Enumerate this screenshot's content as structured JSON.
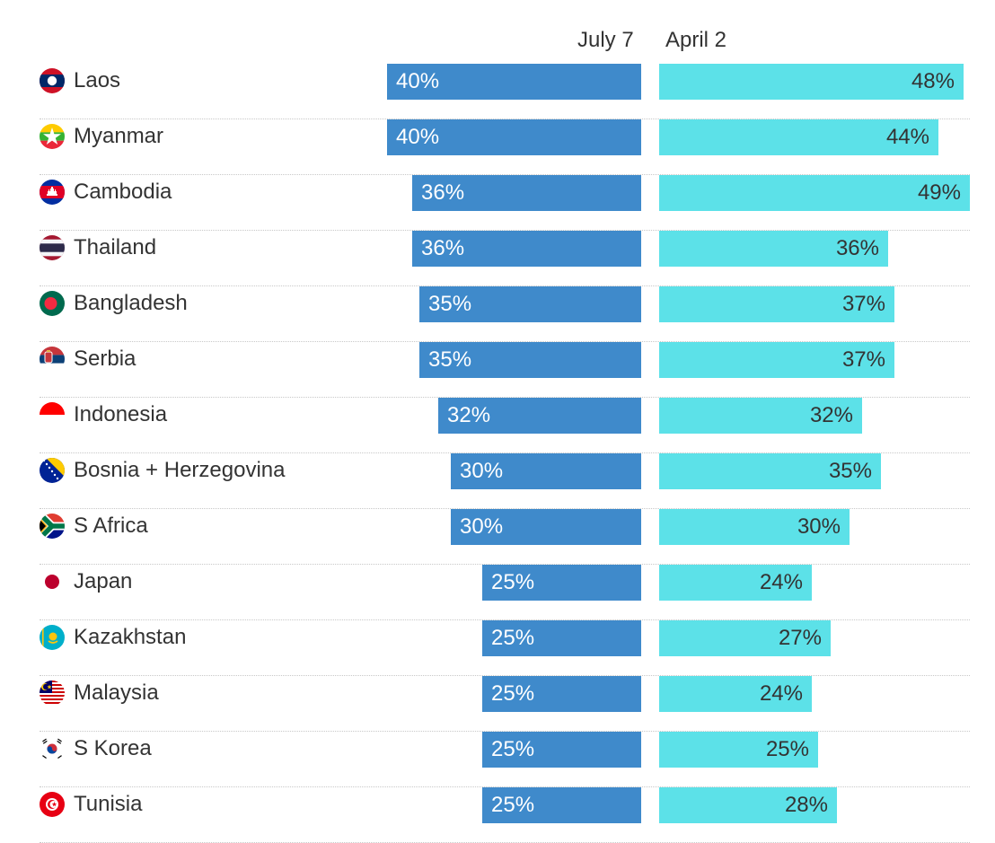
{
  "chart_data": {
    "type": "bar",
    "series": [
      {
        "name": "July 7",
        "values": [
          40,
          40,
          36,
          36,
          35,
          35,
          32,
          30,
          30,
          25,
          25,
          25,
          25,
          25
        ],
        "color": "#3f8acb"
      },
      {
        "name": "April 2",
        "values": [
          48,
          44,
          49,
          36,
          37,
          37,
          32,
          35,
          30,
          24,
          27,
          24,
          25,
          28
        ],
        "color": "#5ce1e8"
      }
    ],
    "categories": [
      "Laos",
      "Myanmar",
      "Cambodia",
      "Thailand",
      "Bangladesh",
      "Serbia",
      "Indonesia",
      "Bosnia + Herzegovina",
      "S Africa",
      "Japan",
      "Kazakhstan",
      "Malaysia",
      "S Korea",
      "Tunisia"
    ],
    "value_labels": {
      "July 7": [
        "40%",
        "40%",
        "36%",
        "36%",
        "35%",
        "35%",
        "32%",
        "30%",
        "30%",
        "25%",
        "25%",
        "25%",
        "25%",
        "25%"
      ],
      "April 2": [
        "48%",
        "44%",
        "49%",
        "36%",
        "37%",
        "37%",
        "32%",
        "35%",
        "30%",
        "24%",
        "27%",
        "24%",
        "25%",
        "28%"
      ]
    },
    "flag_icons": [
      "laos-flag-icon",
      "myanmar-flag-icon",
      "cambodia-flag-icon",
      "thailand-flag-icon",
      "bangladesh-flag-icon",
      "serbia-flag-icon",
      "indonesia-flag-icon",
      "bosnia-flag-icon",
      "south-africa-flag-icon",
      "japan-flag-icon",
      "kazakhstan-flag-icon",
      "malaysia-flag-icon",
      "south-korea-flag-icon",
      "tunisia-flag-icon"
    ],
    "legend_placement": "top",
    "grid": false
  }
}
